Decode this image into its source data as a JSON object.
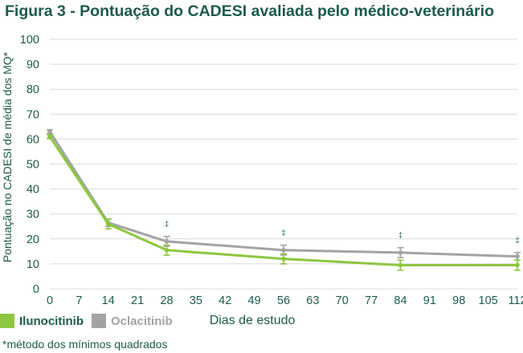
{
  "title": "Figura 3 - Pontuação do CADESI avaliada pelo médico-veterinário",
  "footnote": "*método dos mínimos quadrados",
  "colors": {
    "ilunocitinib": "#8dc63f",
    "oclacitinib": "#a3a3a3",
    "text": "#1c5a4c",
    "grid": "#d9d9d9"
  },
  "chart_data": {
    "type": "line",
    "title": "Figura 3 - Pontuação do CADESI avaliada pelo médico-veterinário",
    "xlabel": "Dias de estudo",
    "ylabel": "Pontuação no CADESI de média dos MQ*",
    "x_ticks": [
      0,
      7,
      14,
      21,
      28,
      35,
      42,
      49,
      56,
      63,
      70,
      77,
      84,
      91,
      98,
      105,
      112
    ],
    "y_ticks": [
      0,
      10,
      20,
      30,
      40,
      50,
      60,
      70,
      80,
      90,
      100
    ],
    "xlim": [
      0,
      112
    ],
    "ylim": [
      0,
      100
    ],
    "grid": "horizontal",
    "legend_position": "bottom-left",
    "series": [
      {
        "name": "Ilunocitinib",
        "x": [
          0,
          14,
          28,
          56,
          84,
          112
        ],
        "y": [
          61,
          26,
          15.5,
          12,
          9.5,
          9.5
        ],
        "err": [
          0.8,
          2,
          2,
          2,
          2,
          2
        ]
      },
      {
        "name": "Oclacitinib",
        "x": [
          0,
          14,
          28,
          56,
          84,
          112
        ],
        "y": [
          63,
          26.5,
          19,
          15.5,
          14.5,
          13
        ],
        "err": [
          0.8,
          1.5,
          2,
          2,
          2,
          1.5
        ]
      }
    ],
    "annotations": [
      {
        "text": "‡",
        "x": 28
      },
      {
        "text": "‡",
        "x": 56
      },
      {
        "text": "‡",
        "x": 84
      },
      {
        "text": "‡",
        "x": 112
      }
    ]
  }
}
